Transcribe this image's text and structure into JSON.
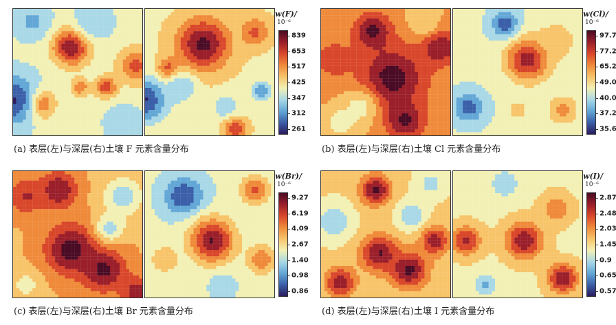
{
  "palette": [
    "#2b1c5e",
    "#3b5fa8",
    "#63a7d6",
    "#a9d8e6",
    "#f2f0b4",
    "#f7c46a",
    "#ef8a3a",
    "#d9472b",
    "#9a1f2a",
    "#4a0b24"
  ],
  "chart_data": [
    {
      "type": "heatmap",
      "title": "",
      "caption": "(a) 表层(左)与深层(右)土壤 F 元素含量分布",
      "legend_title": "w(F)/",
      "legend_unit": "10⁻⁶",
      "legend_ticks": [
        "839",
        "653",
        "517",
        "425",
        "347",
        "312",
        "261"
      ],
      "left": {
        "base": 0.42,
        "blobs": [
          {
            "x": 0.45,
            "y": 0.3,
            "r": 0.1,
            "v": 0.95
          },
          {
            "x": 0.2,
            "y": 0.75,
            "r": 0.08,
            "v": 0.9
          },
          {
            "x": 0.72,
            "y": 0.62,
            "r": 0.06,
            "v": 0.8
          },
          {
            "x": 0.0,
            "y": 0.72,
            "r": 0.14,
            "v": 0.05
          },
          {
            "x": 0.95,
            "y": 0.45,
            "r": 0.1,
            "v": 0.75
          },
          {
            "x": 0.15,
            "y": 0.1,
            "r": 0.1,
            "v": 0.25
          },
          {
            "x": 0.62,
            "y": 0.1,
            "r": 0.1,
            "v": 0.28
          },
          {
            "x": 0.85,
            "y": 0.9,
            "r": 0.1,
            "v": 0.3
          },
          {
            "x": 0.52,
            "y": 0.62,
            "r": 0.05,
            "v": 0.7
          }
        ]
      },
      "right": {
        "base": 0.48,
        "blobs": [
          {
            "x": 0.45,
            "y": 0.28,
            "r": 0.14,
            "v": 0.98
          },
          {
            "x": 0.18,
            "y": 0.48,
            "r": 0.06,
            "v": 0.82
          },
          {
            "x": 0.0,
            "y": 0.72,
            "r": 0.12,
            "v": 0.05
          },
          {
            "x": 0.28,
            "y": 0.62,
            "r": 0.08,
            "v": 0.28
          },
          {
            "x": 0.62,
            "y": 0.78,
            "r": 0.07,
            "v": 0.3
          },
          {
            "x": 0.85,
            "y": 0.18,
            "r": 0.08,
            "v": 0.75
          },
          {
            "x": 0.7,
            "y": 0.95,
            "r": 0.06,
            "v": 0.8
          },
          {
            "x": 0.9,
            "y": 0.65,
            "r": 0.06,
            "v": 0.22
          }
        ]
      }
    },
    {
      "type": "heatmap",
      "title": "",
      "caption": "(b) 表层(左)与深层(右)土壤 Cl 元素含量分布",
      "legend_title": "w(Cl)/",
      "legend_unit": "10⁻⁶",
      "legend_ticks": [
        "97.7",
        "77.2",
        "65.2",
        "49.0",
        "40.0",
        "37.2",
        "35.6"
      ],
      "left": {
        "base": 0.62,
        "blobs": [
          {
            "x": 0.55,
            "y": 0.55,
            "r": 0.18,
            "v": 1.0
          },
          {
            "x": 0.92,
            "y": 0.3,
            "r": 0.1,
            "v": 0.95
          },
          {
            "x": 0.4,
            "y": 0.18,
            "r": 0.1,
            "v": 0.98
          },
          {
            "x": 0.1,
            "y": 0.4,
            "r": 0.12,
            "v": 0.78
          },
          {
            "x": 0.3,
            "y": 0.78,
            "r": 0.1,
            "v": 0.45
          },
          {
            "x": 0.65,
            "y": 0.88,
            "r": 0.1,
            "v": 0.98
          },
          {
            "x": 0.8,
            "y": 0.1,
            "r": 0.08,
            "v": 0.5
          },
          {
            "x": 0.15,
            "y": 0.9,
            "r": 0.08,
            "v": 0.42
          }
        ]
      },
      "right": {
        "base": 0.4,
        "blobs": [
          {
            "x": 0.58,
            "y": 0.4,
            "r": 0.12,
            "v": 0.9
          },
          {
            "x": 0.4,
            "y": 0.12,
            "r": 0.07,
            "v": 0.08
          },
          {
            "x": 0.12,
            "y": 0.78,
            "r": 0.08,
            "v": 0.1
          },
          {
            "x": 0.8,
            "y": 0.25,
            "r": 0.1,
            "v": 0.6
          },
          {
            "x": 0.85,
            "y": 0.8,
            "r": 0.08,
            "v": 0.65
          },
          {
            "x": 0.5,
            "y": 0.8,
            "r": 0.06,
            "v": 0.55
          }
        ]
      }
    },
    {
      "type": "heatmap",
      "title": "",
      "caption": "(c) 表层(左)与深层(右)土壤 Br 元素含量分布",
      "legend_title": "w(Br)/",
      "legend_unit": "10⁻⁶",
      "legend_ticks": [
        "9.27",
        "6.19",
        "4.09",
        "2.67",
        "1.40",
        "0.98",
        "0.86"
      ],
      "left": {
        "base": 0.6,
        "blobs": [
          {
            "x": 0.45,
            "y": 0.62,
            "r": 0.14,
            "v": 1.0
          },
          {
            "x": 0.7,
            "y": 0.78,
            "r": 0.12,
            "v": 0.98
          },
          {
            "x": 0.35,
            "y": 0.15,
            "r": 0.1,
            "v": 0.95
          },
          {
            "x": 0.1,
            "y": 0.2,
            "r": 0.1,
            "v": 0.85
          },
          {
            "x": 0.85,
            "y": 0.2,
            "r": 0.1,
            "v": 0.3
          },
          {
            "x": 0.75,
            "y": 0.45,
            "r": 0.08,
            "v": 0.35
          },
          {
            "x": 0.1,
            "y": 0.9,
            "r": 0.08,
            "v": 0.45
          },
          {
            "x": 0.95,
            "y": 0.95,
            "r": 0.08,
            "v": 0.9
          }
        ]
      },
      "right": {
        "base": 0.4,
        "blobs": [
          {
            "x": 0.3,
            "y": 0.2,
            "r": 0.1,
            "v": 0.05
          },
          {
            "x": 0.52,
            "y": 0.55,
            "r": 0.12,
            "v": 0.95
          },
          {
            "x": 0.85,
            "y": 0.15,
            "r": 0.08,
            "v": 0.75
          },
          {
            "x": 0.9,
            "y": 0.7,
            "r": 0.08,
            "v": 0.7
          },
          {
            "x": 0.15,
            "y": 0.7,
            "r": 0.08,
            "v": 0.6
          },
          {
            "x": 0.6,
            "y": 0.9,
            "r": 0.06,
            "v": 0.3
          }
        ]
      }
    },
    {
      "type": "heatmap",
      "title": "",
      "caption": "(d) 表层(左)与深层(右)土壤 I 元素含量分布",
      "legend_title": "w(I)/",
      "legend_unit": "10⁻⁶",
      "legend_ticks": [
        "2.87",
        "2.48",
        "2.03",
        "1.45",
        "0.9",
        "0.65",
        "0.57"
      ],
      "left": {
        "base": 0.52,
        "blobs": [
          {
            "x": 0.42,
            "y": 0.15,
            "r": 0.08,
            "v": 0.98
          },
          {
            "x": 0.45,
            "y": 0.65,
            "r": 0.1,
            "v": 0.95
          },
          {
            "x": 0.68,
            "y": 0.78,
            "r": 0.1,
            "v": 0.98
          },
          {
            "x": 0.88,
            "y": 0.55,
            "r": 0.08,
            "v": 0.9
          },
          {
            "x": 0.15,
            "y": 0.88,
            "r": 0.08,
            "v": 0.92
          },
          {
            "x": 0.1,
            "y": 0.4,
            "r": 0.1,
            "v": 0.3
          },
          {
            "x": 0.7,
            "y": 0.35,
            "r": 0.08,
            "v": 0.3
          },
          {
            "x": 0.85,
            "y": 0.1,
            "r": 0.08,
            "v": 0.35
          }
        ]
      },
      "right": {
        "base": 0.48,
        "blobs": [
          {
            "x": 0.4,
            "y": 0.1,
            "r": 0.08,
            "v": 0.3
          },
          {
            "x": 0.55,
            "y": 0.55,
            "r": 0.1,
            "v": 0.92
          },
          {
            "x": 0.85,
            "y": 0.85,
            "r": 0.08,
            "v": 0.95
          },
          {
            "x": 0.1,
            "y": 0.55,
            "r": 0.08,
            "v": 0.85
          },
          {
            "x": 0.25,
            "y": 0.9,
            "r": 0.06,
            "v": 0.25
          },
          {
            "x": 0.8,
            "y": 0.3,
            "r": 0.08,
            "v": 0.7
          }
        ]
      }
    }
  ]
}
